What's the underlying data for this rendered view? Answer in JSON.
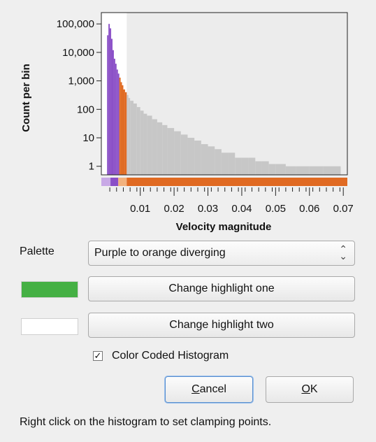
{
  "colors": {
    "purple": "#8a4fc7",
    "purple_light": "#c8a9e6",
    "orange": "#e06a22",
    "orange_light": "#f2b27e",
    "gray_hist": "#c7c7c7",
    "highlight_one": "#45b044",
    "highlight_two": "#ffffff",
    "focus_border": "#5a8fcf"
  },
  "chart_data": {
    "type": "bar",
    "xlabel": "Velocity magnitude",
    "ylabel": "Count per bin",
    "yscale": "log",
    "ylim": [
      0.5,
      250000
    ],
    "xlim": [
      -0.0015,
      0.0712
    ],
    "x_ticks": [
      0.01,
      0.02,
      0.03,
      0.04,
      0.05,
      0.06,
      0.07
    ],
    "x_tick_labels": [
      "0.01",
      "0.02",
      "0.03",
      "0.04",
      "0.05",
      "0.06",
      "0.07"
    ],
    "y_ticks": [
      1,
      10,
      100,
      1000,
      10000,
      100000
    ],
    "y_tick_labels": [
      "1",
      "10",
      "100",
      "1,000",
      "10,000",
      "100,000"
    ],
    "grid": false,
    "series": [
      {
        "x": [
          0.0002,
          0.0006,
          0.001,
          0.0014,
          0.0018,
          0.0022,
          0.0026,
          0.003,
          0.0034,
          0.0038,
          0.0042,
          0.0046,
          0.005,
          0.0055,
          0.006,
          0.0065,
          0.007,
          0.008,
          0.009,
          0.01,
          0.011,
          0.012,
          0.0135,
          0.015,
          0.0165,
          0.018,
          0.02,
          0.022,
          0.024,
          0.026,
          0.028,
          0.03,
          0.032,
          0.034,
          0.036,
          0.038,
          0.04,
          0.042,
          0.044,
          0.046,
          0.048,
          0.05,
          0.053,
          0.056,
          0.06,
          0.064,
          0.068
        ],
        "values": [
          40000,
          100000,
          70000,
          30000,
          12000,
          6000,
          4000,
          2500,
          1800,
          1300,
          900,
          700,
          500,
          400,
          320,
          250,
          200,
          160,
          120,
          90,
          70,
          60,
          45,
          35,
          28,
          22,
          17,
          13,
          10,
          8,
          6,
          5,
          4,
          3,
          3,
          2,
          2,
          2,
          1.5,
          1.5,
          1.2,
          1.2,
          1,
          1,
          1,
          1,
          1
        ]
      }
    ],
    "highlighted_range": {
      "purple_to": 0.0035,
      "orange_to": 0.006
    }
  },
  "palette": {
    "label": "Palette",
    "selected": "Purple to orange diverging"
  },
  "buttons": {
    "highlight_one": "Change highlight one",
    "highlight_two": "Change highlight two",
    "cancel": "Cancel",
    "ok": "OK"
  },
  "checkbox": {
    "label": "Color Coded Histogram",
    "checked": true,
    "mark": "✓"
  },
  "hint": "Right click on the histogram to set clamping points."
}
